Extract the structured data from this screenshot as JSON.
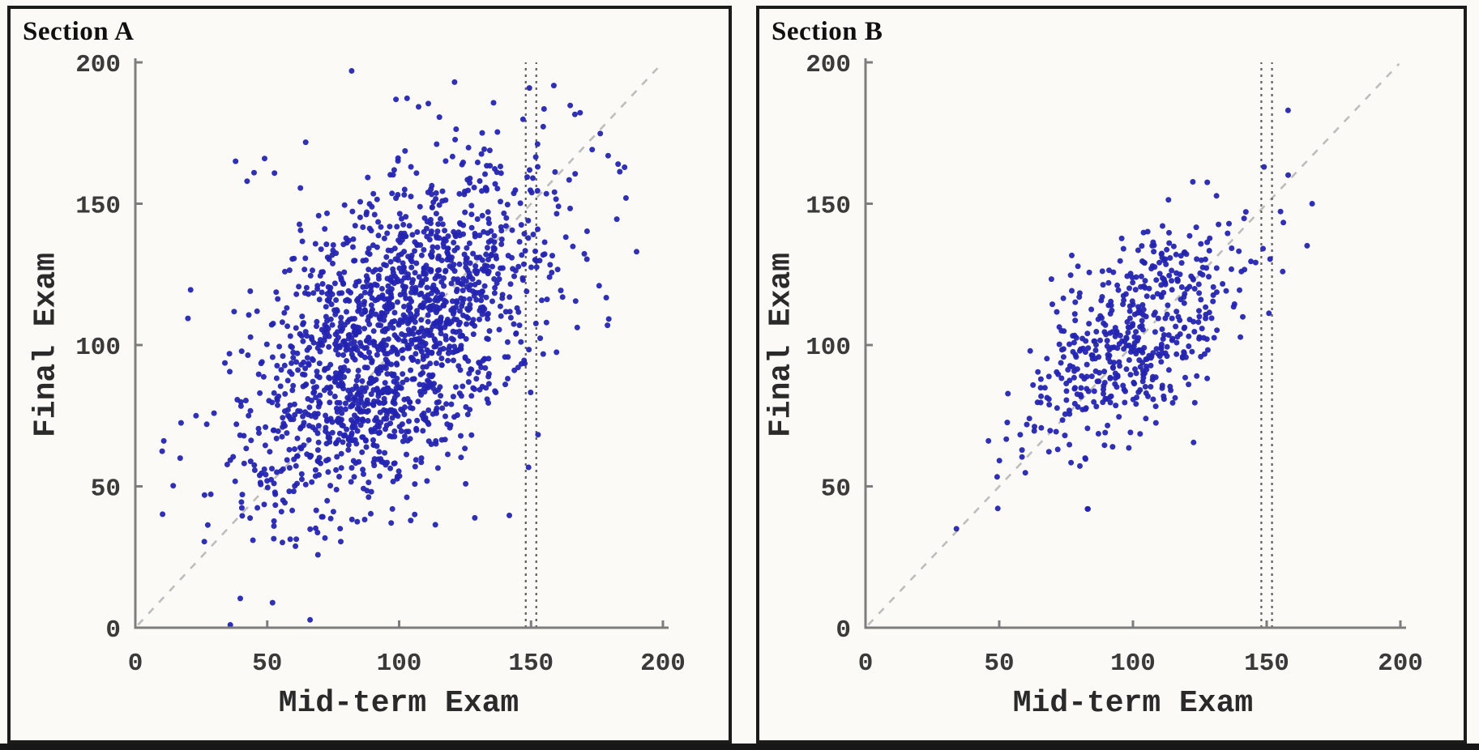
{
  "figure": {
    "background_color": "#fbfaf7",
    "panel_border_color": "#1b1b1b",
    "bottom_edge_color": "#171717"
  },
  "chart_data": [
    {
      "type": "scatter",
      "title": "Section A",
      "xlabel": "Mid-term Exam",
      "ylabel": "Final Exam",
      "xlim": [
        0,
        200
      ],
      "ylim": [
        0,
        200
      ],
      "x_ticks": [
        "0",
        "50",
        "100",
        "150",
        "200"
      ],
      "y_ticks": [
        "0",
        "50",
        "100",
        "150",
        "200"
      ],
      "grid": false,
      "legend": "none",
      "point_color": "#2323b0",
      "point_radius": 3.5,
      "point_opacity": 0.94,
      "distribution": {
        "seed": 7,
        "n": 1700,
        "mean_x": 99,
        "mean_y": 104,
        "sd_x": 28,
        "sd_y": 30,
        "corr": 0.5,
        "clip_x": [
          10,
          188
        ],
        "clip_y": [
          1,
          198
        ]
      },
      "extra_points": [
        [
          36,
          1
        ],
        [
          82,
          197
        ],
        [
          121,
          193
        ],
        [
          38,
          165
        ],
        [
          49,
          166
        ],
        [
          17,
          60
        ],
        [
          23,
          75
        ],
        [
          183,
          164
        ],
        [
          190,
          133
        ],
        [
          186,
          152
        ],
        [
          179,
          107
        ]
      ],
      "reference_lines": {
        "identity": {
          "from": [
            1,
            1
          ],
          "to": [
            199.5,
            199.5
          ],
          "color": "#bdbdbd",
          "dash": "9 10",
          "width": 2.6
        },
        "vertical": {
          "xs": [
            148,
            152
          ],
          "color": "#5c5c5c",
          "dash": "3 5",
          "width": 2.2
        }
      },
      "axis_color": "#7d7d7d",
      "tick_label_color": "#3a3a3a"
    },
    {
      "type": "scatter",
      "title": "Section B",
      "xlabel": "Mid-term Exam",
      "ylabel": "Final Exam",
      "xlim": [
        0,
        200
      ],
      "ylim": [
        0,
        200
      ],
      "x_ticks": [
        "0",
        "50",
        "100",
        "150",
        "200"
      ],
      "y_ticks": [
        "0",
        "50",
        "100",
        "150",
        "200"
      ],
      "grid": false,
      "legend": "none",
      "point_color": "#2323b0",
      "point_radius": 3.5,
      "point_opacity": 0.94,
      "distribution": {
        "seed": 21,
        "n": 520,
        "mean_x": 100,
        "mean_y": 103,
        "sd_x": 22,
        "sd_y": 21,
        "corr": 0.63,
        "clip_x": [
          30,
          172
        ],
        "clip_y": [
          36,
          168
        ]
      },
      "extra_points": [
        [
          158,
          183
        ],
        [
          167,
          150
        ],
        [
          149,
          163
        ],
        [
          156,
          126
        ],
        [
          83,
          42
        ],
        [
          34,
          35
        ]
      ],
      "reference_lines": {
        "identity": {
          "from": [
            1,
            1
          ],
          "to": [
            199.5,
            199.5
          ],
          "color": "#bdbdbd",
          "dash": "9 10",
          "width": 2.6
        },
        "vertical": {
          "xs": [
            148,
            152
          ],
          "color": "#5c5c5c",
          "dash": "3 5",
          "width": 2.2
        }
      },
      "axis_color": "#7d7d7d",
      "tick_label_color": "#3a3a3a"
    }
  ]
}
